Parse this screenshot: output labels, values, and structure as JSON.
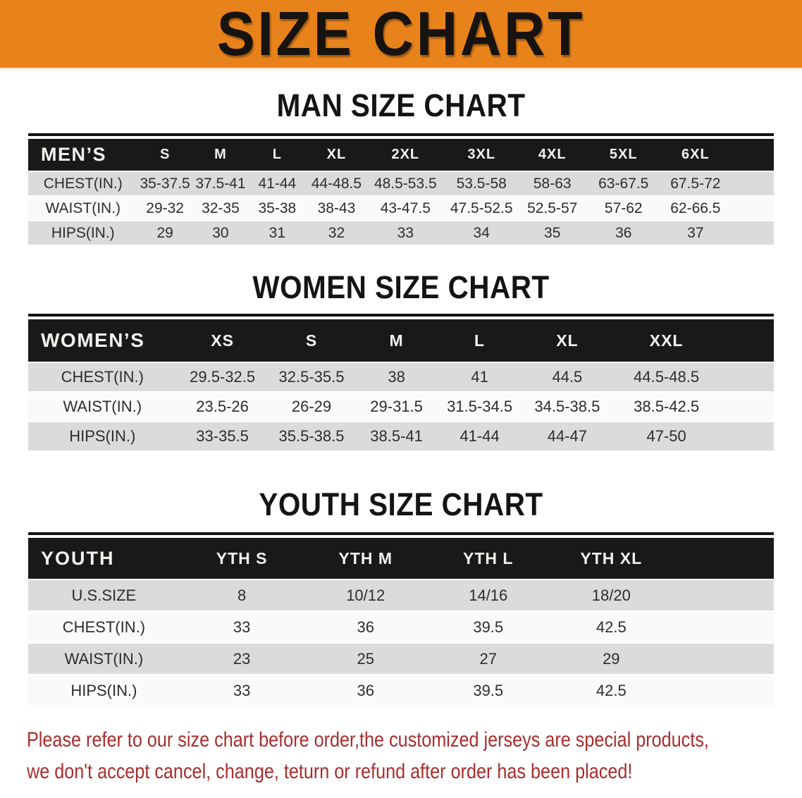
{
  "banner": {
    "title": "SIZE CHART"
  },
  "sections": [
    {
      "heading": "MAN SIZE CHART",
      "table": {
        "label": "MEN’S",
        "columns": [
          "S",
          "M",
          "L",
          "XL",
          "2XL",
          "3XL",
          "4XL",
          "5XL",
          "6XL"
        ],
        "rows": [
          {
            "label": "CHEST(IN.)",
            "values": [
              "35-37.5",
              "37.5-41",
              "41-44",
              "44-48.5",
              "48.5-53.5",
              "53.5-58",
              "58-63",
              "63-67.5",
              "67.5-72"
            ]
          },
          {
            "label": "WAIST(IN.)",
            "values": [
              "29-32",
              "32-35",
              "35-38",
              "38-43",
              "43-47.5",
              "47.5-52.5",
              "52.5-57",
              "57-62",
              "62-66.5"
            ]
          },
          {
            "label": "HIPS(IN.)",
            "values": [
              "29",
              "30",
              "31",
              "32",
              "33",
              "34",
              "35",
              "36",
              "37"
            ]
          }
        ]
      }
    },
    {
      "heading": "WOMEN SIZE CHART",
      "table": {
        "label": "WOMEN’S",
        "columns": [
          "XS",
          "S",
          "M",
          "L",
          "XL",
          "XXL"
        ],
        "rows": [
          {
            "label": "CHEST(IN.)",
            "values": [
              "29.5-32.5",
              "32.5-35.5",
              "38",
              "41",
              "44.5",
              "44.5-48.5"
            ]
          },
          {
            "label": "WAIST(IN.)",
            "values": [
              "23.5-26",
              "26-29",
              "29-31.5",
              "31.5-34.5",
              "34.5-38.5",
              "38.5-42.5"
            ]
          },
          {
            "label": "HIPS(IN.)",
            "values": [
              "33-35.5",
              "35.5-38.5",
              "38.5-41",
              "41-44",
              "44-47",
              "47-50"
            ]
          }
        ]
      }
    },
    {
      "heading": "YOUTH SIZE CHART",
      "table": {
        "label": "YOUTH",
        "columns": [
          "YTH S",
          "YTH M",
          "YTH L",
          "YTH XL"
        ],
        "rows": [
          {
            "label": "U.S.SIZE",
            "values": [
              "8",
              "10/12",
              "14/16",
              "18/20"
            ]
          },
          {
            "label": "CHEST(IN.)",
            "values": [
              "33",
              "36",
              "39.5",
              "42.5"
            ]
          },
          {
            "label": "WAIST(IN.)",
            "values": [
              "23",
              "25",
              "27",
              "29"
            ]
          },
          {
            "label": "HIPS(IN.)",
            "values": [
              "33",
              "36",
              "39.5",
              "42.5"
            ]
          }
        ]
      }
    }
  ],
  "footer": {
    "line1": "Please refer to our size chart before order,the customized jerseys are special products,",
    "line2": "we don't accept cancel, change, teturn or refund after order has been placed!"
  },
  "colors": {
    "banner_orange": "#E8831C",
    "header_bar_black": "#191919",
    "row_gray": "#DBDBDB",
    "row_white": "#FAFAFA",
    "footer_red": "#A92D2D"
  }
}
